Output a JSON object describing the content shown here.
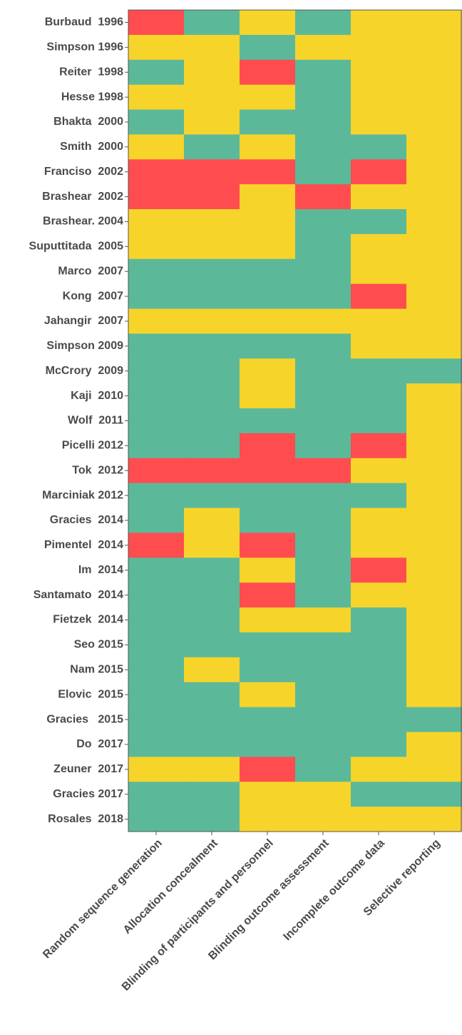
{
  "chart_data": {
    "type": "heatmap",
    "rows": [
      "Burbaud  1996",
      "Simpson 1996",
      "Reiter  1998",
      "Hesse 1998",
      "Bhakta  2000",
      "Smith  2000",
      "Franciso  2002",
      "Brashear  2002",
      "Brashear. 2004",
      "Suputtitada  2005",
      "Marco  2007",
      "Kong  2007",
      "Jahangir  2007",
      "Simpson 2009",
      "McCrory  2009",
      "Kaji  2010",
      "Wolf  2011",
      "Picelli 2012",
      "Tok  2012",
      "Marciniak 2012",
      "Gracies  2014",
      "Pimentel  2014",
      "Im  2014",
      "Santamato  2014",
      "Fietzek  2014",
      "Seo 2015",
      "Nam 2015",
      "Elovic  2015",
      "Gracies   2015",
      "Do  2017",
      "Zeuner  2017",
      "Gracies 2017",
      "Rosales  2018"
    ],
    "columns": [
      "Random sequence generation",
      "Allocation concealment",
      "Blinding of participants and personnel",
      "Blinding outcome assessment",
      "Incomplete outcome data",
      "Selective reporting"
    ],
    "colors": [
      "#5bb99a",
      "#f7d42a",
      "#ff4d4f"
    ],
    "values": [
      [
        2,
        0,
        1,
        0,
        1,
        1
      ],
      [
        1,
        1,
        0,
        1,
        1,
        1
      ],
      [
        0,
        1,
        2,
        0,
        1,
        1
      ],
      [
        1,
        1,
        1,
        0,
        1,
        1
      ],
      [
        0,
        1,
        0,
        0,
        1,
        1
      ],
      [
        1,
        0,
        1,
        0,
        0,
        1
      ],
      [
        2,
        2,
        2,
        0,
        2,
        1
      ],
      [
        2,
        2,
        1,
        2,
        1,
        1
      ],
      [
        1,
        1,
        1,
        0,
        0,
        1
      ],
      [
        1,
        1,
        1,
        0,
        1,
        1
      ],
      [
        0,
        0,
        0,
        0,
        1,
        1
      ],
      [
        0,
        0,
        0,
        0,
        2,
        1
      ],
      [
        1,
        1,
        1,
        1,
        1,
        1
      ],
      [
        0,
        0,
        0,
        0,
        1,
        1
      ],
      [
        0,
        0,
        1,
        0,
        0,
        0
      ],
      [
        0,
        0,
        1,
        0,
        0,
        1
      ],
      [
        0,
        0,
        0,
        0,
        0,
        1
      ],
      [
        0,
        0,
        2,
        0,
        2,
        1
      ],
      [
        2,
        2,
        2,
        2,
        1,
        1
      ],
      [
        0,
        0,
        0,
        0,
        0,
        1
      ],
      [
        0,
        1,
        0,
        0,
        1,
        1
      ],
      [
        2,
        1,
        2,
        0,
        1,
        1
      ],
      [
        0,
        0,
        1,
        0,
        2,
        1
      ],
      [
        0,
        0,
        2,
        0,
        1,
        1
      ],
      [
        0,
        0,
        1,
        1,
        0,
        1
      ],
      [
        0,
        0,
        0,
        0,
        0,
        1
      ],
      [
        0,
        1,
        0,
        0,
        0,
        1
      ],
      [
        0,
        0,
        1,
        0,
        0,
        1
      ],
      [
        0,
        0,
        0,
        0,
        0,
        0
      ],
      [
        0,
        0,
        0,
        0,
        0,
        1
      ],
      [
        1,
        1,
        2,
        0,
        1,
        1
      ],
      [
        0,
        0,
        1,
        1,
        0,
        0
      ],
      [
        0,
        0,
        1,
        1,
        1,
        1
      ]
    ]
  }
}
